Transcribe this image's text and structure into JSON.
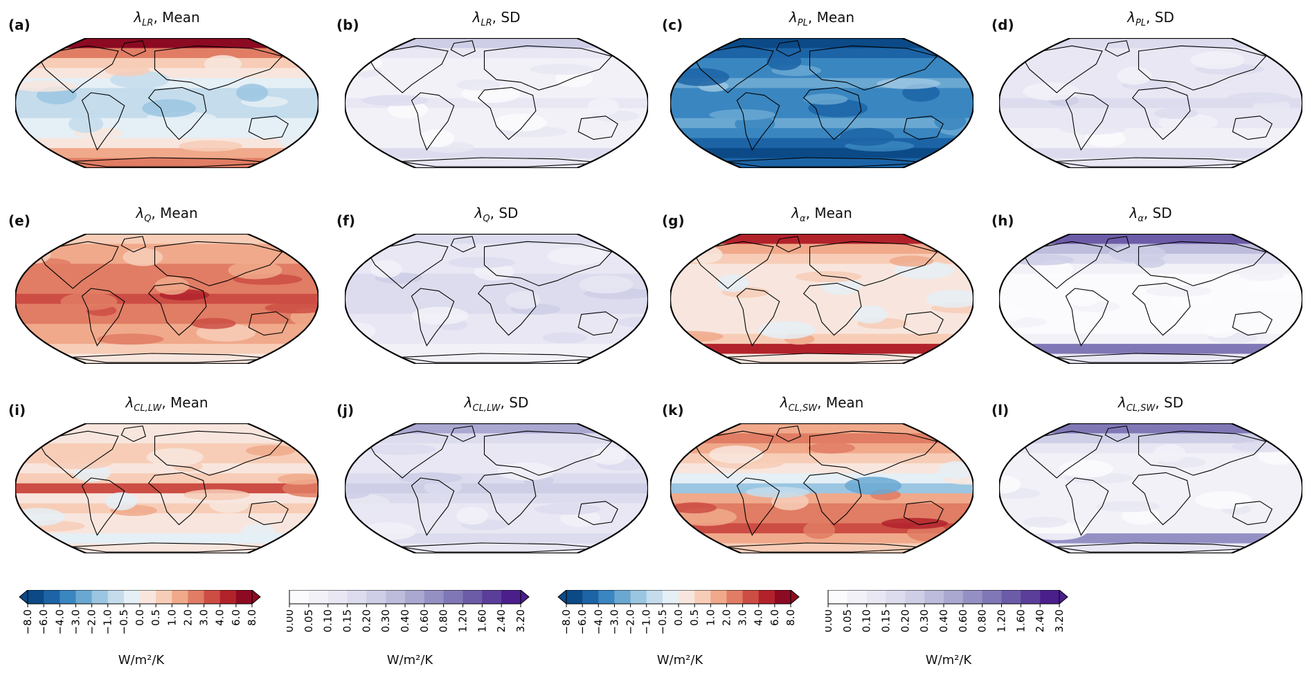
{
  "figure": {
    "panels": [
      {
        "letter": "(a)",
        "symbol": "λ",
        "subscript": "LR",
        "stat": "Mean",
        "cmap": "RdBu_r"
      },
      {
        "letter": "(b)",
        "symbol": "λ",
        "subscript": "LR",
        "stat": "SD",
        "cmap": "Purples"
      },
      {
        "letter": "(c)",
        "symbol": "λ",
        "subscript": "PL",
        "stat": "Mean",
        "cmap": "RdBu_r"
      },
      {
        "letter": "(d)",
        "symbol": "λ",
        "subscript": "PL",
        "stat": "SD",
        "cmap": "Purples"
      },
      {
        "letter": "(e)",
        "symbol": "λ",
        "subscript": "Q",
        "stat": "Mean",
        "cmap": "RdBu_r"
      },
      {
        "letter": "(f)",
        "symbol": "λ",
        "subscript": "Q",
        "stat": "SD",
        "cmap": "Purples"
      },
      {
        "letter": "(g)",
        "symbol": "λ",
        "subscript": "α",
        "stat": "Mean",
        "cmap": "RdBu_r"
      },
      {
        "letter": "(h)",
        "symbol": "λ",
        "subscript": "α",
        "stat": "SD",
        "cmap": "Purples"
      },
      {
        "letter": "(i)",
        "symbol": "λ",
        "subscript": "CL,LW",
        "stat": "Mean",
        "cmap": "RdBu_r"
      },
      {
        "letter": "(j)",
        "symbol": "λ",
        "subscript": "CL,LW",
        "stat": "SD",
        "cmap": "Purples"
      },
      {
        "letter": "(k)",
        "symbol": "λ",
        "subscript": "CL,SW",
        "stat": "Mean",
        "cmap": "RdBu_r"
      },
      {
        "letter": "(l)",
        "symbol": "λ",
        "subscript": "CL,SW",
        "stat": "SD",
        "cmap": "Purples"
      }
    ],
    "colorbars": [
      {
        "cmap": "RdBu_r",
        "extend": "both",
        "unit": "W/m²/K",
        "ticks": [
          "−8.0",
          "−6.0",
          "−4.0",
          "−3.0",
          "−2.0",
          "−1.0",
          "−0.5",
          "0.0",
          "0.5",
          "1.0",
          "2.0",
          "3.0",
          "4.0",
          "6.0",
          "8.0"
        ]
      },
      {
        "cmap": "Purples",
        "extend": "max",
        "unit": "W/m²/K",
        "ticks": [
          "0.00",
          "0.05",
          "0.10",
          "0.15",
          "0.20",
          "0.30",
          "0.40",
          "0.60",
          "0.80",
          "1.20",
          "1.60",
          "2.40",
          "3.20"
        ]
      },
      {
        "cmap": "RdBu_r",
        "extend": "both",
        "unit": "W/m²/K",
        "ticks": [
          "−8.0",
          "−6.0",
          "−4.0",
          "−3.0",
          "−2.0",
          "−1.0",
          "−0.5",
          "0.0",
          "0.5",
          "1.0",
          "2.0",
          "3.0",
          "4.0",
          "6.0",
          "8.0"
        ]
      },
      {
        "cmap": "Purples",
        "extend": "max",
        "unit": "W/m²/K",
        "ticks": [
          "0.00",
          "0.05",
          "0.10",
          "0.15",
          "0.20",
          "0.30",
          "0.40",
          "0.60",
          "0.80",
          "1.20",
          "1.60",
          "2.40",
          "3.20"
        ]
      }
    ],
    "colors": {
      "rdbu": [
        "#0b4a87",
        "#1c64a6",
        "#3a86c0",
        "#6aa8d2",
        "#9bc6e2",
        "#c4dcec",
        "#e5eff6",
        "#f8e6de",
        "#f7cdb7",
        "#f0a98b",
        "#e07d64",
        "#cc4d44",
        "#b2222b",
        "#8c0a22"
      ],
      "purples": [
        "#fbfafd",
        "#f2f1f8",
        "#e8e7f3",
        "#dcdcee",
        "#ceceE6",
        "#bdbcdc",
        "#aaa8d0",
        "#9590c4",
        "#8078b6",
        "#6c5ca8",
        "#5a3e9a",
        "#4a1f8c"
      ]
    },
    "chart_data": [
      {
        "type": "heatmap",
        "title": "λLR, Mean",
        "unit": "W/m²/K",
        "colorbar_range": [
          -8,
          8
        ],
        "extend": "both"
      },
      {
        "type": "heatmap",
        "title": "λLR, SD",
        "unit": "W/m²/K",
        "colorbar_range": [
          0,
          3.2
        ],
        "extend": "max"
      },
      {
        "type": "heatmap",
        "title": "λPL, Mean",
        "unit": "W/m²/K",
        "colorbar_range": [
          -8,
          8
        ],
        "extend": "both"
      },
      {
        "type": "heatmap",
        "title": "λPL, SD",
        "unit": "W/m²/K",
        "colorbar_range": [
          0,
          3.2
        ],
        "extend": "max"
      },
      {
        "type": "heatmap",
        "title": "λQ, Mean",
        "unit": "W/m²/K",
        "colorbar_range": [
          -8,
          8
        ],
        "extend": "both"
      },
      {
        "type": "heatmap",
        "title": "λQ, SD",
        "unit": "W/m²/K",
        "colorbar_range": [
          0,
          3.2
        ],
        "extend": "max"
      },
      {
        "type": "heatmap",
        "title": "λα, Mean",
        "unit": "W/m²/K",
        "colorbar_range": [
          -8,
          8
        ],
        "extend": "both"
      },
      {
        "type": "heatmap",
        "title": "λα, SD",
        "unit": "W/m²/K",
        "colorbar_range": [
          0,
          3.2
        ],
        "extend": "max"
      },
      {
        "type": "heatmap",
        "title": "λCL,LW, Mean",
        "unit": "W/m²/K",
        "colorbar_range": [
          -8,
          8
        ],
        "extend": "both"
      },
      {
        "type": "heatmap",
        "title": "λCL,LW, SD",
        "unit": "W/m²/K",
        "colorbar_range": [
          0,
          3.2
        ],
        "extend": "max"
      },
      {
        "type": "heatmap",
        "title": "λCL,SW, Mean",
        "unit": "W/m²/K",
        "colorbar_range": [
          -8,
          8
        ],
        "extend": "both"
      },
      {
        "type": "heatmap",
        "title": "λCL,SW, SD",
        "unit": "W/m²/K",
        "colorbar_range": [
          0,
          3.2
        ],
        "extend": "max"
      }
    ]
  }
}
